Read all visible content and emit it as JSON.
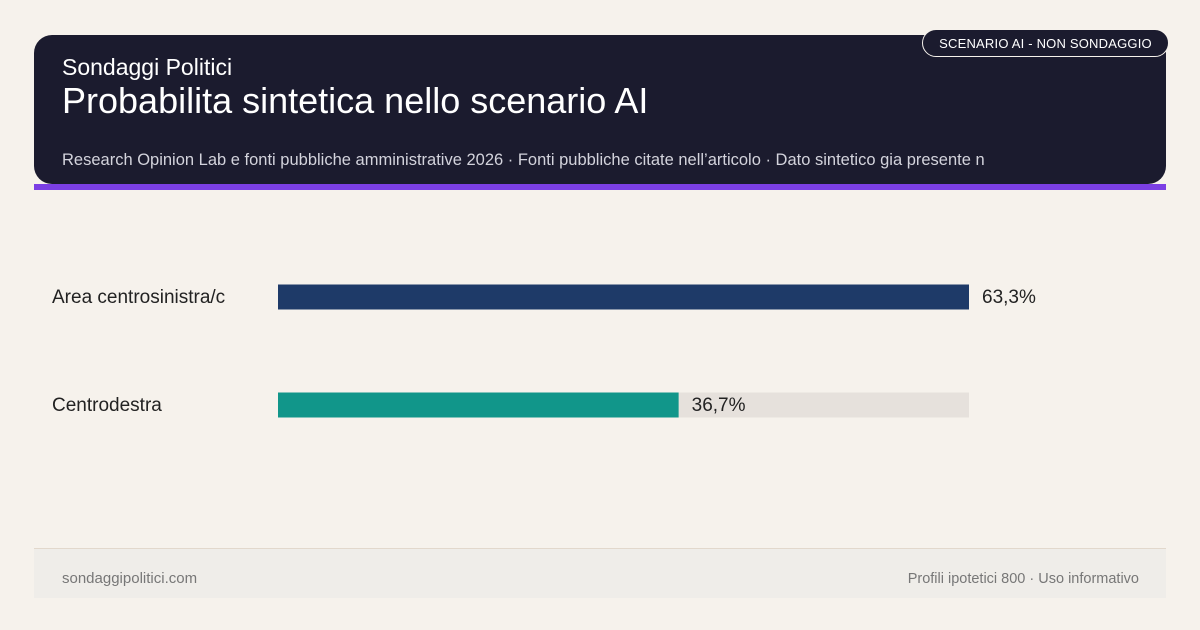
{
  "header": {
    "brand": "Sondaggi Politici",
    "title": "Probabilita sintetica nello scenario AI",
    "subtitle": "Research Opinion Lab e fonti pubbliche amministrative 2026 · Fonti pubbliche citate nell’articolo · Dato sintetico gia presente n",
    "badge": "SCENARIO AI - NON SONDAGGIO"
  },
  "footer": {
    "site": "sondaggipolitici.com",
    "note": "Profili ipotetici 800 · Uso informativo"
  },
  "colors": {
    "header_bg": "#1b1b2e",
    "accent": "#7b3fe4",
    "track": "#e6e1dc"
  },
  "chart_data": {
    "type": "bar",
    "orientation": "horizontal",
    "categories": [
      "Area centrosinistra/c",
      "Centrodestra"
    ],
    "values": [
      63.3,
      36.7
    ],
    "value_labels": [
      "63,3%",
      "36,7%"
    ],
    "colors": [
      "#1e3a68",
      "#11968a"
    ],
    "xlim": [
      0,
      63.3
    ],
    "grid": false
  }
}
